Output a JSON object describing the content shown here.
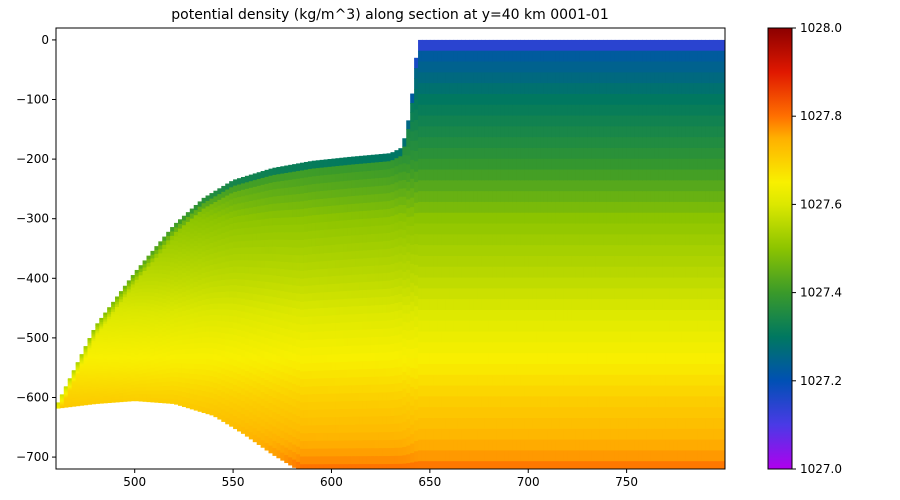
{
  "chart_data": {
    "type": "heatmap",
    "title": "potential density (kg/m^3) along section at y=40 km 0001-01",
    "xlabel": "",
    "ylabel": "",
    "xlim": [
      460,
      800
    ],
    "ylim": [
      -720,
      20
    ],
    "x_ticks": [
      500,
      550,
      600,
      650,
      700,
      750
    ],
    "y_ticks": [
      0,
      -100,
      -200,
      -300,
      -400,
      -500,
      -600,
      -700
    ],
    "grid": false,
    "colorbar": {
      "min": 1027.0,
      "max": 1028.0,
      "ticks": [
        "1027.0",
        "1027.2",
        "1027.4",
        "1027.6",
        "1027.8",
        "1028.0"
      ]
    },
    "ice_base_profile": {
      "x": [
        460,
        480,
        500,
        520,
        535,
        550,
        570,
        590,
        610,
        630,
        636,
        640,
        643,
        645,
        800
      ],
      "depth": [
        -615,
        -480,
        -390,
        -310,
        -265,
        -235,
        -215,
        -203,
        -196,
        -190,
        -180,
        -120,
        -30,
        0,
        0
      ]
    },
    "bottom_profile": {
      "x": [
        460,
        480,
        500,
        520,
        540,
        555,
        570,
        585,
        800
      ],
      "depth": [
        -618,
        -610,
        -605,
        -610,
        -630,
        -660,
        -695,
        -725,
        -725
      ]
    },
    "density_profile": {
      "depth": [
        0,
        -100,
        -200,
        -300,
        -400,
        -500,
        -550,
        -600,
        -650,
        -700,
        -720
      ],
      "density": [
        1027.2,
        1027.3,
        1027.38,
        1027.5,
        1027.56,
        1027.63,
        1027.66,
        1027.7,
        1027.73,
        1027.77,
        1027.8
      ]
    }
  }
}
